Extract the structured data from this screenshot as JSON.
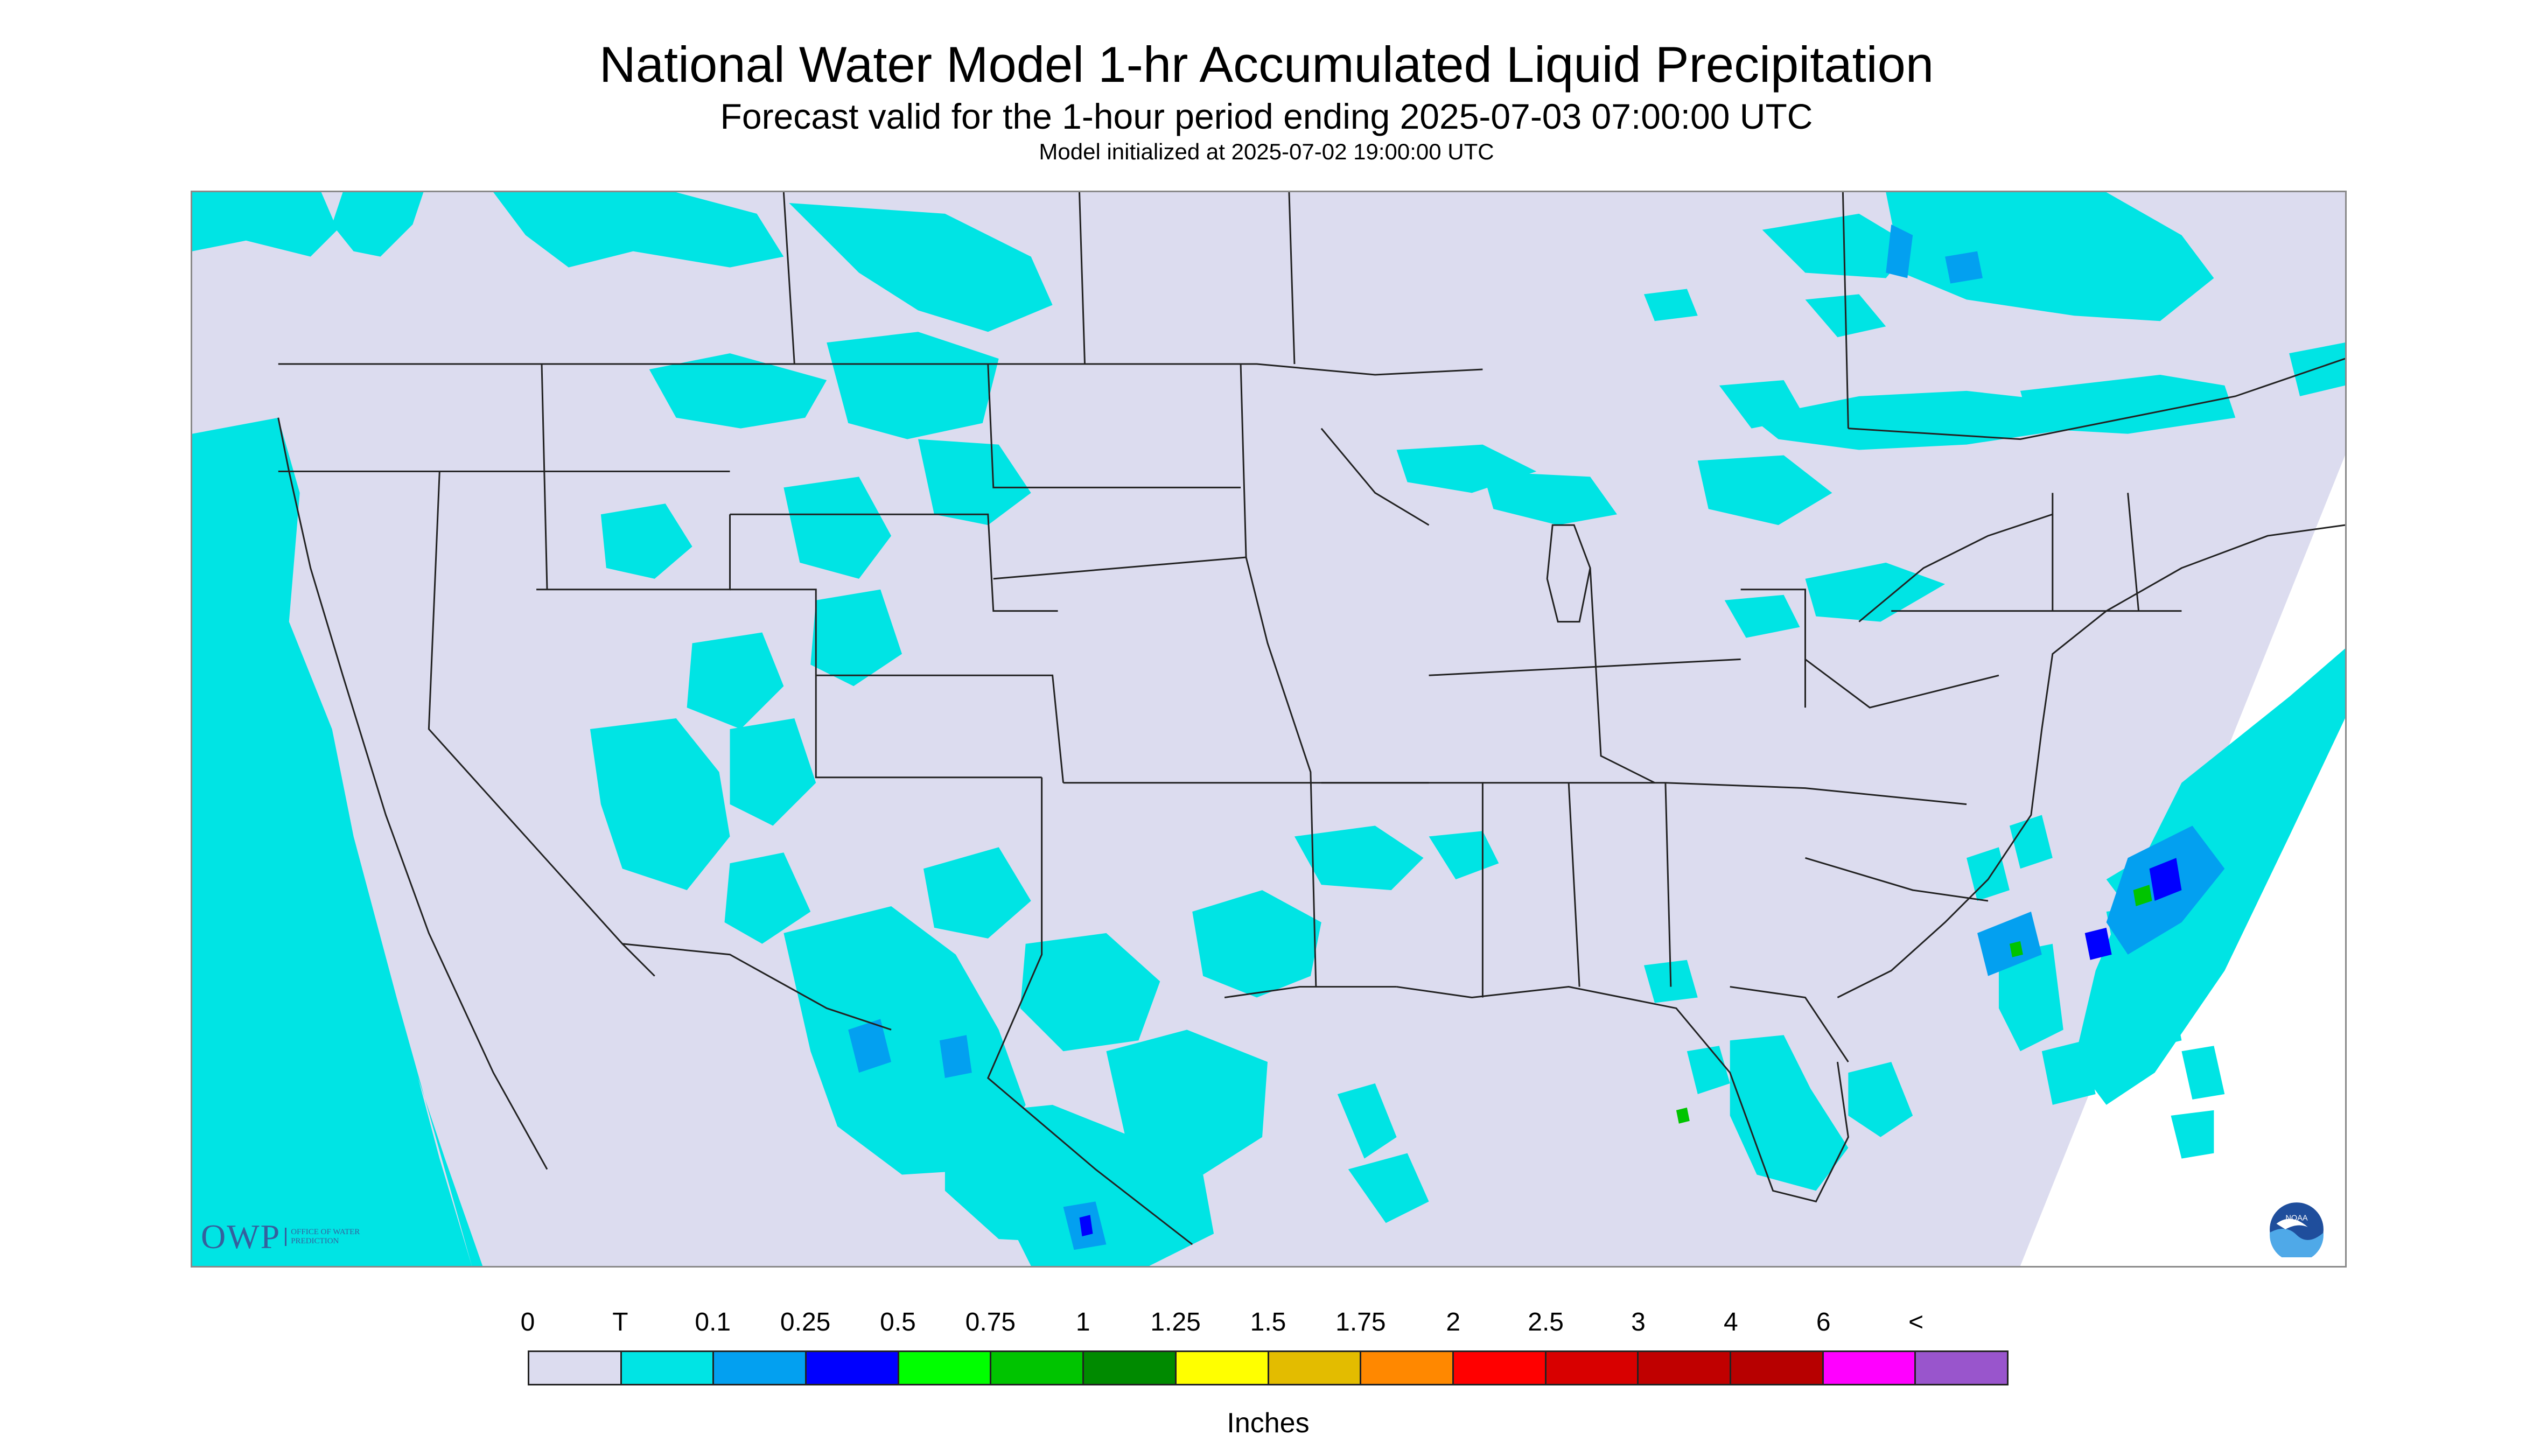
{
  "header": {
    "title": "National Water Model 1-hr Accumulated Liquid Precipitation",
    "subtitle": "Forecast valid for the 1-hour period ending 2025-07-03 07:00:00 UTC",
    "init_line": "Model initialized at 2025-07-02 19:00:00 UTC"
  },
  "map": {
    "background_color": "#dcdcef",
    "no_data_color": "#ffffff",
    "boundary_color": "#222222",
    "logos": {
      "owp_text": "OWP",
      "owp_subtext": "OFFICE OF WATER PREDICTION",
      "noaa_text": "NOAA"
    }
  },
  "legend": {
    "labels": [
      "0",
      "T",
      "0.1",
      "0.25",
      "0.5",
      "0.75",
      "1",
      "1.25",
      "1.5",
      "1.75",
      "2",
      "2.5",
      "3",
      "4",
      "6",
      "<"
    ],
    "colors": [
      "#dcdcef",
      "#00e4e4",
      "#03a0f0",
      "#0000ff",
      "#00ff00",
      "#00c400",
      "#008a00",
      "#ffff00",
      "#e3bc00",
      "#ff8800",
      "#ff0000",
      "#d80000",
      "#c00000",
      "#b70000",
      "#ff00ff",
      "#9955cc"
    ],
    "units": "Inches"
  }
}
